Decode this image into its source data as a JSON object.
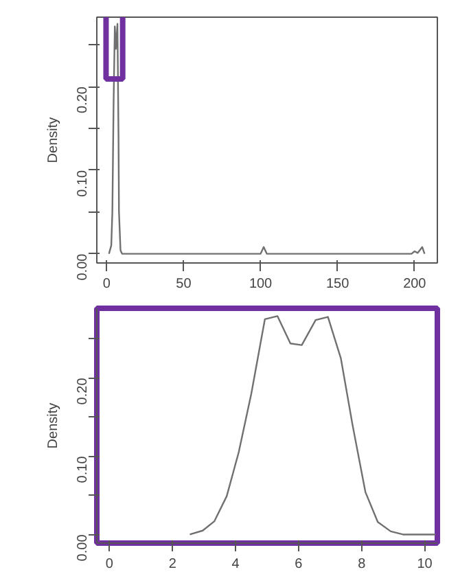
{
  "chart_data": [
    {
      "type": "line",
      "ylabel": "Density",
      "xlim": [
        -6.4,
        214.8
      ],
      "ylim": [
        -0.011,
        0.283
      ],
      "xticks": [
        0,
        50,
        100,
        150,
        200
      ],
      "yticks": [
        {
          "value": 0,
          "label": "0.00"
        },
        {
          "value": 0.05,
          "label": null
        },
        {
          "value": 0.1,
          "label": "0.10"
        },
        {
          "value": 0.15,
          "label": null
        },
        {
          "value": 0.2,
          "label": "0.20"
        },
        {
          "value": 0.25,
          "label": null
        }
      ],
      "grid": false,
      "series": [
        {
          "color": "#707070",
          "x": [
            1.5,
            3,
            3.7,
            4.5,
            5.3,
            6,
            7,
            7.7,
            8,
            9,
            10,
            100,
            102,
            104,
            198,
            200,
            202,
            205,
            206.5
          ],
          "values": [
            0,
            0.01,
            0.05,
            0.18,
            0.272,
            0.245,
            0.275,
            0.14,
            0.05,
            0.004,
            0,
            0,
            0.008,
            0,
            0,
            0.003,
            0.001,
            0.008,
            0
          ]
        }
      ]
    },
    {
      "type": "line",
      "ylabel": "Density",
      "xlim": [
        -0.4,
        10.4
      ],
      "ylim": [
        -0.011,
        0.289
      ],
      "xticks": [
        0,
        2,
        4,
        6,
        8,
        10
      ],
      "yticks": [
        {
          "value": 0,
          "label": "0.00"
        },
        {
          "value": 0.05,
          "label": null
        },
        {
          "value": 0.1,
          "label": "0.10"
        },
        {
          "value": 0.15,
          "label": null
        },
        {
          "value": 0.2,
          "label": "0.20"
        },
        {
          "value": 0.25,
          "label": null
        }
      ],
      "grid": false,
      "series": [
        {
          "color": "#707070",
          "x": [
            2.55,
            2.96,
            3.33,
            3.72,
            4.1,
            4.5,
            4.93,
            5.33,
            5.74,
            6.1,
            6.54,
            6.93,
            7.34,
            7.71,
            8.12,
            8.51,
            8.92,
            9.31,
            10.34
          ],
          "values": [
            0,
            0.005,
            0.017,
            0.049,
            0.105,
            0.18,
            0.275,
            0.279,
            0.244,
            0.242,
            0.274,
            0.278,
            0.225,
            0.14,
            0.054,
            0.016,
            0.004,
            0,
            0
          ]
        }
      ]
    }
  ]
}
